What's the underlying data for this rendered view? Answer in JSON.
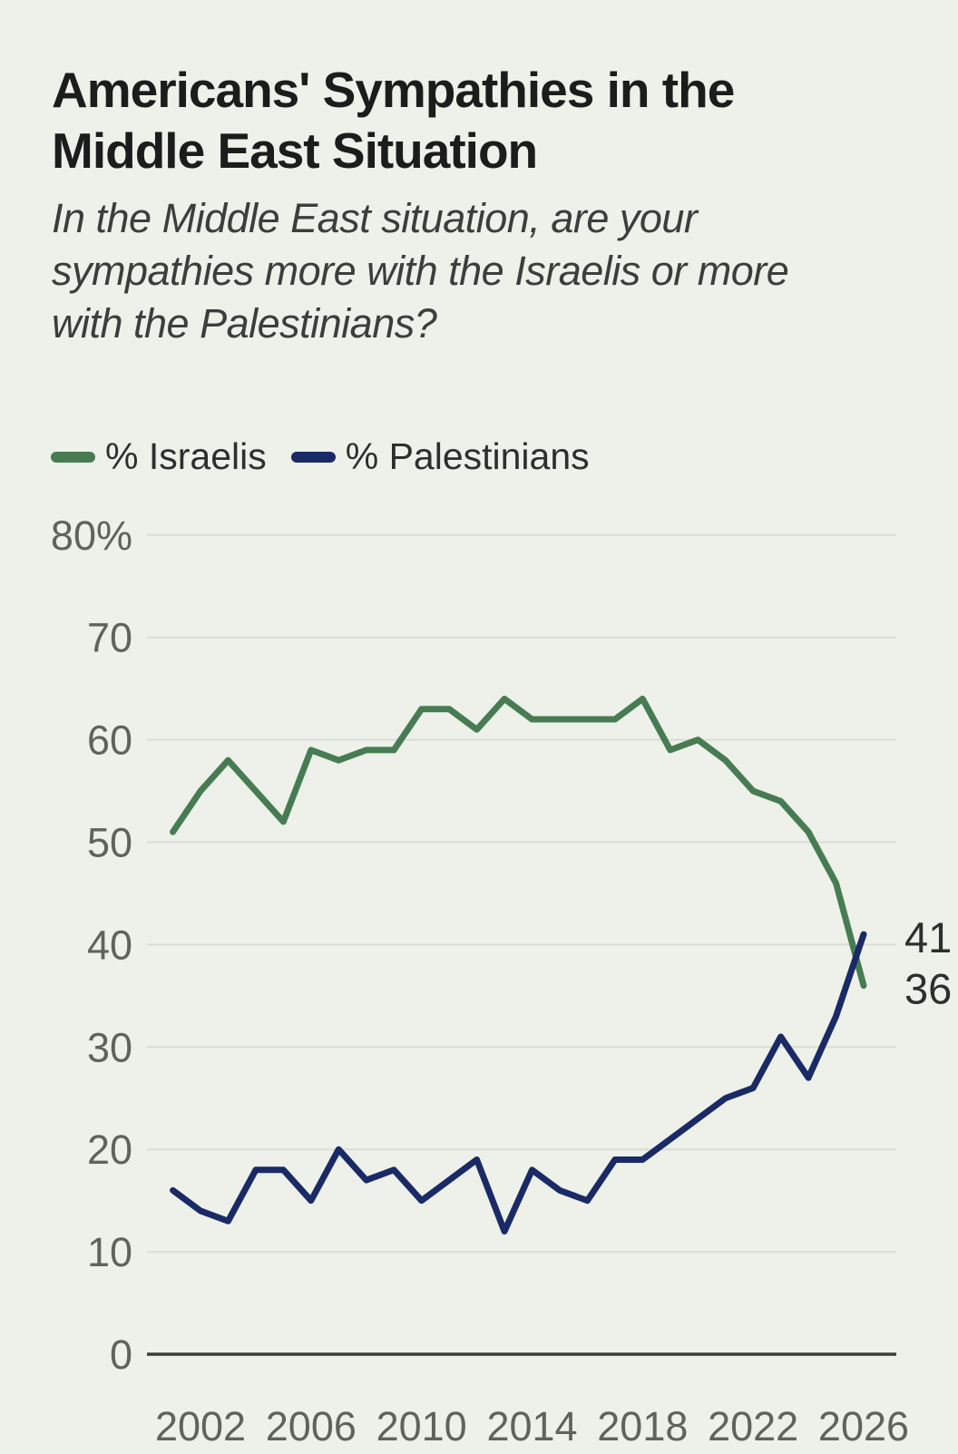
{
  "page": {
    "background": "#EDF1EA"
  },
  "header": {
    "title_lines": [
      "Americans' Sympathies in the",
      "Middle East Situation"
    ],
    "subtitle_lines": [
      "In the Middle East situation, are your",
      "sympathies more with the Israelis or more",
      "with the Palestinians?"
    ]
  },
  "legend": {
    "items": [
      {
        "label": "% Israelis",
        "color": "#477C52"
      },
      {
        "label": "% Palestinians",
        "color": "#1A2A66"
      }
    ]
  },
  "colors": {
    "background": "#EDF1EA",
    "israelis_line": "#477C52",
    "palestinians_line": "#1A2A66",
    "grid": "#D9DDD5",
    "axis": "#3C3C3C",
    "tick_text": "#5E635E",
    "end_label_text": "#2E2E2E",
    "title_text": "#1C1C1C",
    "subtitle_text": "#3D3D3D"
  },
  "chart_data": {
    "type": "line",
    "title": "Americans' Sympathies in the Middle East Situation",
    "question": "In the Middle East situation, are your sympathies more with the Israelis or more with the Palestinians?",
    "x": [
      2001,
      2002,
      2003,
      2004,
      2005,
      2006,
      2007,
      2008,
      2009,
      2010,
      2011,
      2012,
      2013,
      2014,
      2015,
      2016,
      2017,
      2018,
      2019,
      2020,
      2021,
      2022,
      2023,
      2024,
      2025,
      2026
    ],
    "series": [
      {
        "name": "% Israelis",
        "color": "#477C52",
        "values": [
          51,
          55,
          58,
          55,
          52,
          59,
          58,
          59,
          59,
          63,
          63,
          61,
          64,
          62,
          62,
          62,
          62,
          64,
          59,
          60,
          58,
          55,
          54,
          51,
          46,
          36
        ]
      },
      {
        "name": "% Palestinians",
        "color": "#1A2A66",
        "values": [
          16,
          14,
          13,
          18,
          18,
          15,
          20,
          17,
          18,
          15,
          17,
          19,
          12,
          18,
          16,
          15,
          19,
          19,
          21,
          23,
          25,
          26,
          31,
          27,
          33,
          41
        ]
      }
    ],
    "end_labels": [
      {
        "text": "41",
        "series_index": 1
      },
      {
        "text": "36",
        "series_index": 0
      }
    ],
    "xticks": [
      2002,
      2006,
      2010,
      2014,
      2018,
      2022,
      2026
    ],
    "yticks": [
      0,
      10,
      20,
      30,
      40,
      50,
      60,
      70,
      80
    ],
    "ytick_labels": [
      "0",
      "10",
      "20",
      "30",
      "40",
      "50",
      "60",
      "70",
      "80%"
    ],
    "xlim": [
      2001,
      2026
    ],
    "ylim": [
      0,
      80
    ],
    "grid": true,
    "legend_position": "top"
  }
}
